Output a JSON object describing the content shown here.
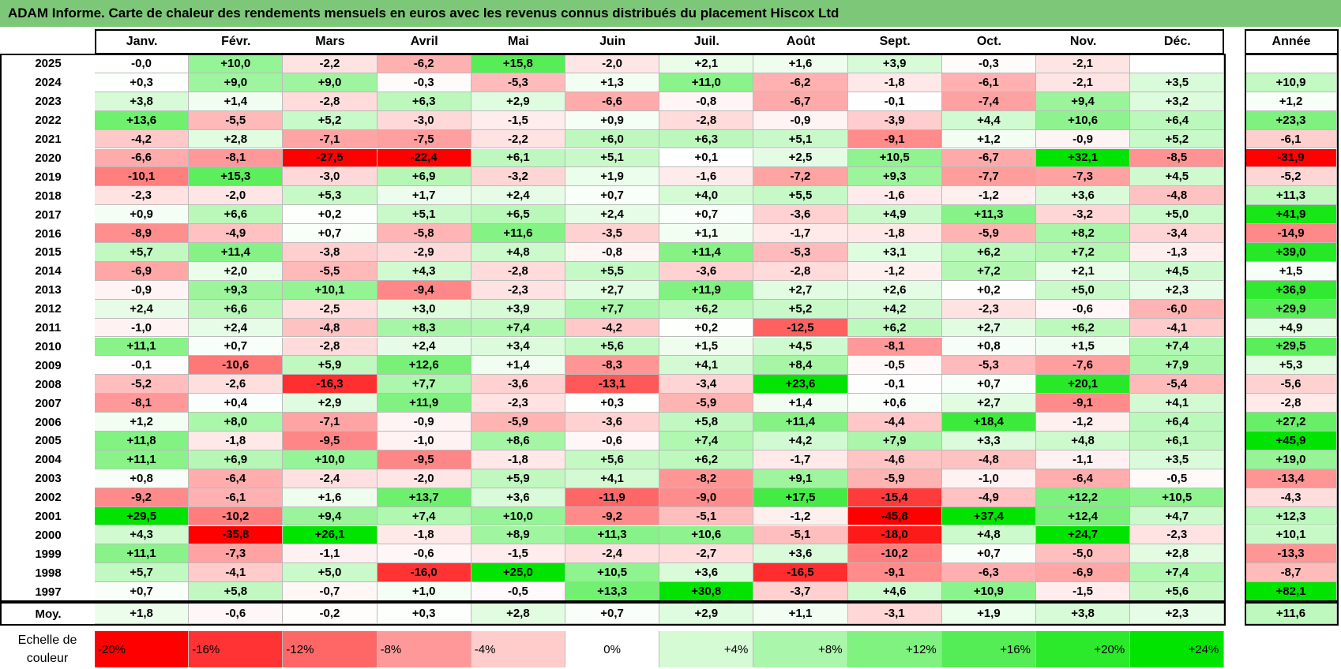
{
  "title": "ADAM Informe. Carte de chaleur des rendements mensuels en euros avec les revenus connus distribués du placement Hiscox Ltd",
  "chart_data": {
    "type": "heatmap",
    "title": "ADAM Informe. Carte de chaleur des rendements mensuels en euros avec les revenus connus distribués du placement Hiscox Ltd",
    "columns": [
      "Janv.",
      "Févr.",
      "Mars",
      "Avril",
      "Mai",
      "Juin",
      "Juil.",
      "Août",
      "Sept.",
      "Oct.",
      "Nov.",
      "Déc."
    ],
    "annual_header": "Année",
    "rows": [
      {
        "year": "2025",
        "values": [
          "-0,0",
          "+10,0",
          "-2,2",
          "-6,2",
          "+15,8",
          "-2,0",
          "+2,1",
          "+1,6",
          "+3,9",
          "-0,3",
          "-2,1",
          ""
        ],
        "annual": ""
      },
      {
        "year": "2024",
        "values": [
          "+0,3",
          "+9,0",
          "+9,0",
          "-0,3",
          "-5,3",
          "+1,3",
          "+11,0",
          "-6,2",
          "-1,8",
          "-6,1",
          "-2,1",
          "+3,5"
        ],
        "annual": "+10,9"
      },
      {
        "year": "2023",
        "values": [
          "+3,8",
          "+1,4",
          "-2,8",
          "+6,3",
          "+2,9",
          "-6,6",
          "-0,8",
          "-6,7",
          "-0,1",
          "-7,4",
          "+9,4",
          "+3,2"
        ],
        "annual": "+1,2"
      },
      {
        "year": "2022",
        "values": [
          "+13,6",
          "-5,5",
          "+5,2",
          "-3,0",
          "-1,5",
          "+0,9",
          "-2,8",
          "-0,9",
          "-3,9",
          "+4,4",
          "+10,6",
          "+6,4"
        ],
        "annual": "+23,3"
      },
      {
        "year": "2021",
        "values": [
          "-4,2",
          "+2,8",
          "-7,1",
          "-7,5",
          "-2,2",
          "+6,0",
          "+6,3",
          "+5,1",
          "-9,1",
          "+1,2",
          "-0,9",
          "+5,2"
        ],
        "annual": "-6,1"
      },
      {
        "year": "2020",
        "values": [
          "-6,6",
          "-8,1",
          "-27,5",
          "-22,4",
          "+6,1",
          "+5,1",
          "+0,1",
          "+2,5",
          "+10,5",
          "-6,7",
          "+32,1",
          "-8,5"
        ],
        "annual": "-31,9"
      },
      {
        "year": "2019",
        "values": [
          "-10,1",
          "+15,3",
          "-3,0",
          "+6,9",
          "-3,2",
          "+1,9",
          "-1,6",
          "-7,2",
          "+9,3",
          "-7,7",
          "-7,3",
          "+4,5"
        ],
        "annual": "-5,2"
      },
      {
        "year": "2018",
        "values": [
          "-2,3",
          "-2,0",
          "+5,3",
          "+1,7",
          "+2,4",
          "+0,7",
          "+4,0",
          "+5,5",
          "-1,6",
          "-1,2",
          "+3,6",
          "-4,8"
        ],
        "annual": "+11,3"
      },
      {
        "year": "2017",
        "values": [
          "+0,9",
          "+6,6",
          "+0,2",
          "+5,1",
          "+6,5",
          "+2,4",
          "+0,7",
          "-3,6",
          "+4,9",
          "+11,3",
          "-3,2",
          "+5,0"
        ],
        "annual": "+41,9"
      },
      {
        "year": "2016",
        "values": [
          "-8,9",
          "-4,9",
          "+0,7",
          "-5,8",
          "+11,6",
          "-3,5",
          "+1,1",
          "-1,7",
          "-1,8",
          "-5,9",
          "+8,2",
          "-3,4"
        ],
        "annual": "-14,9"
      },
      {
        "year": "2015",
        "values": [
          "+5,7",
          "+11,4",
          "-3,8",
          "-2,9",
          "+4,8",
          "-0,8",
          "+11,4",
          "-5,3",
          "+3,1",
          "+6,2",
          "+7,2",
          "-1,3"
        ],
        "annual": "+39,0"
      },
      {
        "year": "2014",
        "values": [
          "-6,9",
          "+2,0",
          "-5,5",
          "+4,3",
          "-2,8",
          "+5,5",
          "-3,6",
          "-2,8",
          "-1,2",
          "+7,2",
          "+2,1",
          "+4,5"
        ],
        "annual": "+1,5"
      },
      {
        "year": "2013",
        "values": [
          "-0,9",
          "+9,3",
          "+10,1",
          "-9,4",
          "-2,3",
          "+2,7",
          "+11,9",
          "+2,7",
          "+2,6",
          "+0,2",
          "+5,0",
          "+2,3"
        ],
        "annual": "+36,9"
      },
      {
        "year": "2012",
        "values": [
          "+2,4",
          "+6,6",
          "-2,5",
          "+3,0",
          "+3,9",
          "+7,7",
          "+6,2",
          "+5,2",
          "+4,2",
          "-2,3",
          "-0,6",
          "-6,0"
        ],
        "annual": "+29,9"
      },
      {
        "year": "2011",
        "values": [
          "-1,0",
          "+2,4",
          "-4,8",
          "+8,3",
          "+7,4",
          "-4,2",
          "+0,2",
          "-12,5",
          "+6,2",
          "+2,7",
          "+6,2",
          "-4,1"
        ],
        "annual": "+4,9"
      },
      {
        "year": "2010",
        "values": [
          "+11,1",
          "+0,7",
          "-2,8",
          "+2,4",
          "+3,4",
          "+5,6",
          "+1,5",
          "+4,5",
          "-8,1",
          "+0,8",
          "+1,5",
          "+7,4"
        ],
        "annual": "+29,5"
      },
      {
        "year": "2009",
        "values": [
          "-0,1",
          "-10,6",
          "+5,9",
          "+12,6",
          "+1,4",
          "-8,3",
          "+4,1",
          "+8,4",
          "-0,5",
          "-5,3",
          "-7,6",
          "+7,9"
        ],
        "annual": "+5,3"
      },
      {
        "year": "2008",
        "values": [
          "-5,2",
          "-2,6",
          "-16,3",
          "+7,7",
          "-3,6",
          "-13,1",
          "-3,4",
          "+23,6",
          "-0,1",
          "+0,7",
          "+20,1",
          "-5,4"
        ],
        "annual": "-5,6"
      },
      {
        "year": "2007",
        "values": [
          "-8,1",
          "+0,4",
          "+2,9",
          "+11,9",
          "-2,3",
          "+0,3",
          "-5,9",
          "+1,4",
          "+0,6",
          "+2,7",
          "-9,1",
          "+4,1"
        ],
        "annual": "-2,8"
      },
      {
        "year": "2006",
        "values": [
          "+1,2",
          "+8,0",
          "-7,1",
          "-0,9",
          "-5,9",
          "-3,6",
          "+5,8",
          "+11,4",
          "-4,4",
          "+18,4",
          "-1,2",
          "+6,4"
        ],
        "annual": "+27,2"
      },
      {
        "year": "2005",
        "values": [
          "+11,8",
          "-1,8",
          "-9,5",
          "-1,0",
          "+8,6",
          "-0,6",
          "+7,4",
          "+4,2",
          "+7,9",
          "+3,3",
          "+4,8",
          "+6,1"
        ],
        "annual": "+45,9"
      },
      {
        "year": "2004",
        "values": [
          "+11,1",
          "+6,9",
          "+10,0",
          "-9,5",
          "-1,8",
          "+5,6",
          "+6,2",
          "-1,7",
          "-4,6",
          "-4,8",
          "-1,1",
          "+3,5"
        ],
        "annual": "+19,0"
      },
      {
        "year": "2003",
        "values": [
          "+0,8",
          "-6,4",
          "-2,4",
          "-2,0",
          "+5,9",
          "+4,1",
          "-8,2",
          "+9,1",
          "-5,9",
          "-1,0",
          "-6,4",
          "-0,5"
        ],
        "annual": "-13,4"
      },
      {
        "year": "2002",
        "values": [
          "-9,2",
          "-6,1",
          "+1,6",
          "+13,7",
          "+3,6",
          "-11,9",
          "-9,0",
          "+17,5",
          "-15,4",
          "-4,9",
          "+12,2",
          "+10,5"
        ],
        "annual": "-4,3"
      },
      {
        "year": "2001",
        "values": [
          "+29,5",
          "-10,2",
          "+9,4",
          "+7,4",
          "+10,0",
          "-9,2",
          "-5,1",
          "-1,2",
          "-45,8",
          "+37,4",
          "+12,4",
          "+4,7"
        ],
        "annual": "+12,3"
      },
      {
        "year": "2000",
        "values": [
          "+4,3",
          "-35,8",
          "+26,1",
          "-1,8",
          "+8,9",
          "+11,3",
          "+10,6",
          "-5,1",
          "-18,0",
          "+4,8",
          "+24,7",
          "-2,3"
        ],
        "annual": "+10,1"
      },
      {
        "year": "1999",
        "values": [
          "+11,1",
          "-7,3",
          "-1,1",
          "-0,6",
          "-1,5",
          "-2,4",
          "-2,7",
          "+3,6",
          "-10,2",
          "+0,7",
          "-5,0",
          "+2,8"
        ],
        "annual": "-13,3"
      },
      {
        "year": "1998",
        "values": [
          "+5,7",
          "-4,1",
          "+5,0",
          "-16,0",
          "+25,0",
          "+10,5",
          "+3,6",
          "-16,5",
          "-9,1",
          "-6,3",
          "-6,9",
          "+7,4"
        ],
        "annual": "-8,7"
      },
      {
        "year": "1997",
        "values": [
          "+0,7",
          "+5,8",
          "-0,7",
          "+1,0",
          "-0,5",
          "+13,3",
          "+30,8",
          "-3,7",
          "+4,6",
          "+10,9",
          "-1,5",
          "+5,6"
        ],
        "annual": "+82,1"
      }
    ],
    "average": {
      "label": "Moy.",
      "values": [
        "+1,8",
        "-0,6",
        "-0,2",
        "+0,3",
        "+2,8",
        "+0,7",
        "+2,9",
        "+1,1",
        "-3,1",
        "+1,9",
        "+3,8",
        "+2,3"
      ],
      "annual": "+11,6"
    },
    "color_scale": {
      "label_line1": "Echelle de",
      "label_line2": "couleur",
      "steps": [
        {
          "label": "-20%",
          "value": -20
        },
        {
          "label": "-16%",
          "value": -16
        },
        {
          "label": "-12%",
          "value": -12
        },
        {
          "label": "-8%",
          "value": -8
        },
        {
          "label": "-4%",
          "value": -4
        },
        {
          "label": "0%",
          "value": 0
        },
        {
          "label": "+4%",
          "value": 4
        },
        {
          "label": "+8%",
          "value": 8
        },
        {
          "label": "+12%",
          "value": 12
        },
        {
          "label": "+16%",
          "value": 16
        },
        {
          "label": "+20%",
          "value": 20
        },
        {
          "label": "+24%",
          "value": 24
        }
      ]
    },
    "colors": {
      "negative": "#ff0000",
      "neutral": "#ffffff",
      "positive": "#00e400",
      "title_bar": "#7dc878"
    }
  }
}
